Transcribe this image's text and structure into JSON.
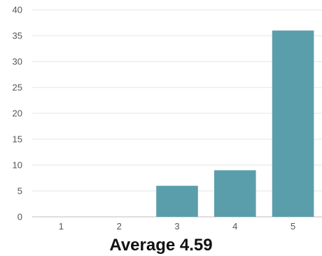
{
  "chart_data": {
    "type": "bar",
    "categories": [
      "1",
      "2",
      "3",
      "4",
      "5"
    ],
    "values": [
      0,
      0,
      6,
      9,
      36
    ],
    "title": "",
    "xlabel": "",
    "ylabel": "",
    "ylim": [
      0,
      40
    ],
    "y_ticks": [
      0,
      5,
      10,
      15,
      20,
      25,
      30,
      35,
      40
    ],
    "grid": true,
    "colors": {
      "bar": "#5b9eab",
      "grid": "#e6e6e6",
      "axis": "#bdbdbd"
    }
  },
  "caption": "Average 4.59"
}
